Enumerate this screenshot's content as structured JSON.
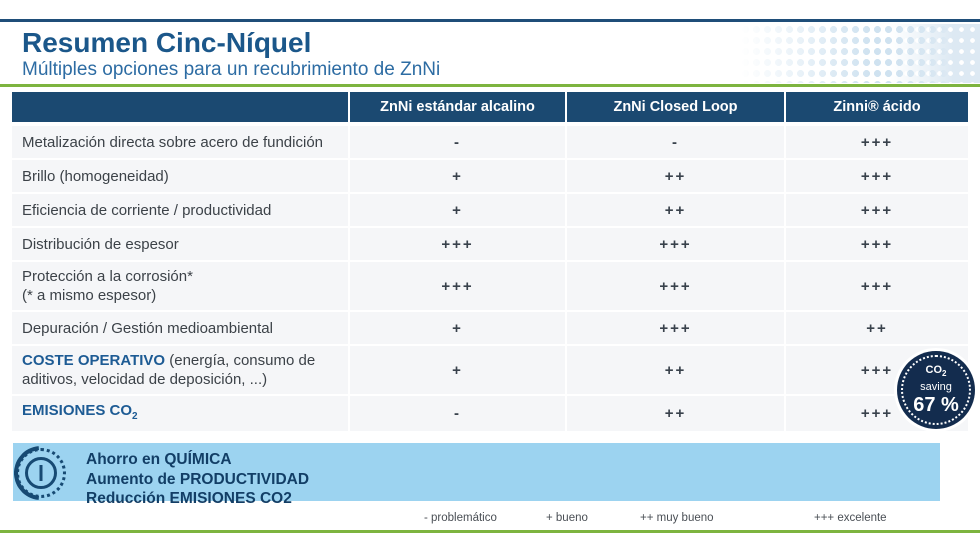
{
  "header": {
    "title": "Resumen Cinc-Níquel",
    "subtitle": "Múltiples opciones para un recubrimiento de ZnNi"
  },
  "table": {
    "columns": [
      "",
      "ZnNi estándar alcalino",
      "ZnNi Closed Loop",
      "Zinni® ácido"
    ],
    "rows": [
      {
        "label": "Metalización directa sobre acero de fundición",
        "values": [
          "-",
          "-",
          "+++"
        ]
      },
      {
        "label": "Brillo (homogeneidad)",
        "values": [
          "+",
          "++",
          "+++"
        ]
      },
      {
        "label": "Eficiencia de corriente / productividad",
        "values": [
          "+",
          "++",
          "+++"
        ]
      },
      {
        "label": "Distribución de espesor",
        "values": [
          "+++",
          "+++",
          "+++"
        ]
      },
      {
        "label": "Protección a la corrosión*",
        "sublabel": "(* a mismo espesor)",
        "values": [
          "+++",
          "+++",
          "+++"
        ]
      },
      {
        "label": "Depuración / Gestión medioambiental",
        "values": [
          "+",
          "+++",
          "++"
        ]
      },
      {
        "strong": "COSTE OPERATIVO",
        "rest": " (energía, consumo de aditivos, velocidad de deposición, ...)",
        "values": [
          "+",
          "++",
          "+++"
        ]
      },
      {
        "strong": "EMISIONES CO",
        "strong_sub": "2",
        "values": [
          "-",
          "++",
          "+++"
        ]
      }
    ]
  },
  "badge": {
    "co2": "CO",
    "co2_sub": "2",
    "saving": "saving",
    "value": "67 %"
  },
  "banner": {
    "lines": [
      "Ahorro en QUÍMICA",
      "Aumento de PRODUCTIVIDAD",
      "Reducción EMISIONES CO2"
    ]
  },
  "legend": {
    "items": [
      "- problemático",
      "+ bueno",
      "++ muy bueno",
      "+++ excelente"
    ]
  },
  "colors": {
    "navy_header": "#1b4971",
    "title_blue": "#1b578a",
    "subtitle_blue": "#2d6ca3",
    "accent_green": "#7db43f",
    "banner_blue": "#9cd3f0",
    "badge_navy": "#132c4e",
    "row_bg": "#f5f6f8"
  }
}
